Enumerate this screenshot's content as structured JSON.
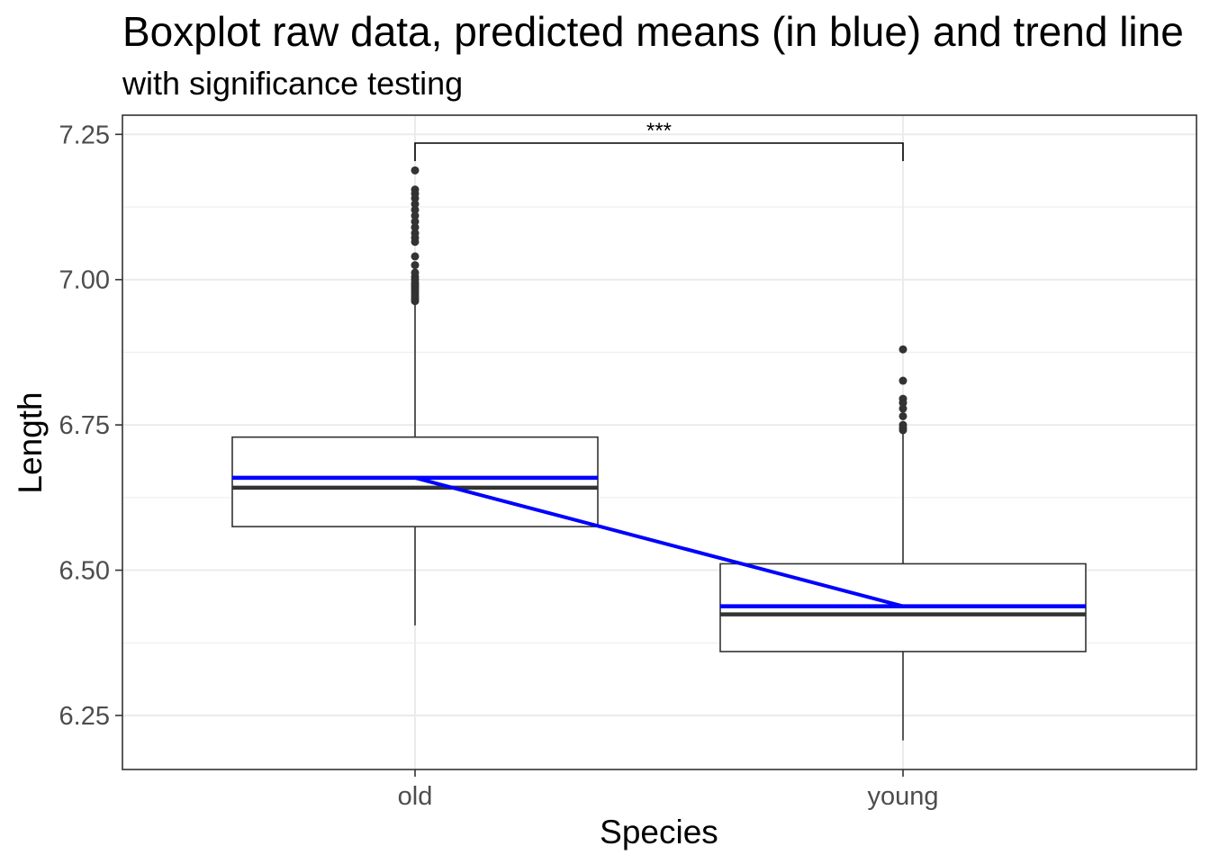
{
  "chart_data": {
    "type": "boxplot",
    "title": "Boxplot raw data, predicted means (in blue) and trend line",
    "subtitle": "with significance testing",
    "xlabel": "Species",
    "ylabel": "Length",
    "categories": [
      "old",
      "young"
    ],
    "ylim": [
      6.157,
      7.283
    ],
    "yticks": [
      "6.25",
      "6.50",
      "6.75",
      "7.00",
      "7.25"
    ],
    "ytick_values": [
      6.25,
      6.5,
      6.75,
      7.0,
      7.25
    ],
    "grid": true,
    "boxes": [
      {
        "category": "old",
        "whisker_low": 6.405,
        "q1": 6.575,
        "median": 6.642,
        "q3": 6.729,
        "whisker_high": 6.961,
        "outliers": [
          6.963,
          6.967,
          6.971,
          6.975,
          6.979,
          6.983,
          6.987,
          6.991,
          6.995,
          7.0,
          7.005,
          7.012,
          7.025,
          7.04,
          7.065,
          7.072,
          7.08,
          7.09,
          7.1,
          7.11,
          7.12,
          7.13,
          7.14,
          7.148,
          7.155,
          7.188
        ]
      },
      {
        "category": "young",
        "whisker_low": 6.207,
        "q1": 6.36,
        "median": 6.424,
        "q3": 6.511,
        "whisker_high": 6.736,
        "outliers": [
          6.741,
          6.745,
          6.75,
          6.765,
          6.778,
          6.788,
          6.795,
          6.826,
          6.88
        ]
      }
    ],
    "predicted_means": [
      {
        "category": "old",
        "value": 6.659
      },
      {
        "category": "young",
        "value": 6.438
      }
    ],
    "trend_line": [
      6.659,
      6.438
    ],
    "trend_color": "#0000ff",
    "significance": {
      "label": "***",
      "y": 7.235,
      "from": "old",
      "to": "young"
    }
  }
}
